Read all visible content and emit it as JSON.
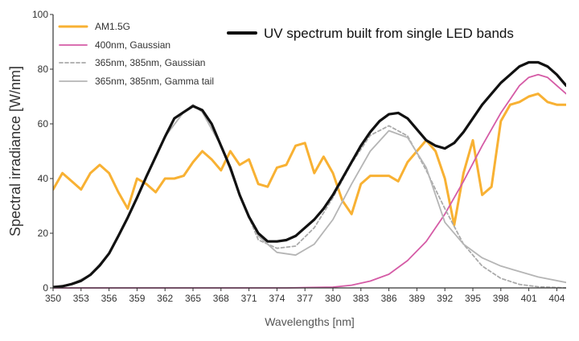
{
  "chart_data": {
    "type": "line",
    "title": "UV spectrum built from single LED bands",
    "xlabel": "Wavelengths [nm]",
    "ylabel": "Spectral irradiance [W/nm]",
    "xlim": [
      350,
      405
    ],
    "ylim": [
      0,
      100
    ],
    "x_ticks": [
      350,
      353,
      356,
      359,
      362,
      365,
      368,
      371,
      374,
      377,
      380,
      383,
      386,
      389,
      392,
      395,
      398,
      401,
      404
    ],
    "x_tick_labels": [
      "350",
      "353",
      "356",
      "359",
      "362",
      "365",
      "368",
      "371",
      "374",
      "377",
      "380",
      "383",
      "386",
      "389",
      "392",
      "395",
      "398",
      "401",
      "404"
    ],
    "y_ticks": [
      0,
      20,
      40,
      60,
      80,
      100
    ],
    "y_tick_labels": [
      "0",
      "20",
      "40",
      "60",
      "80",
      "100"
    ],
    "grid": false,
    "legend_placement": "top-left",
    "series": [
      {
        "name": "AM1.5G",
        "color": "#f8b133",
        "style": "solid",
        "x": [
          350,
          351,
          352,
          353,
          354,
          355,
          356,
          357,
          358,
          359,
          360,
          361,
          362,
          363,
          364,
          365,
          366,
          367,
          368,
          369,
          370,
          371,
          372,
          373,
          374,
          375,
          376,
          377,
          378,
          379,
          380,
          381,
          382,
          383,
          384,
          385,
          386,
          387,
          388,
          389,
          390,
          391,
          392,
          393,
          394,
          395,
          396,
          397,
          398,
          399,
          400,
          401,
          402,
          403,
          404,
          405
        ],
        "y": [
          36,
          42,
          39,
          36,
          42,
          45,
          42,
          35,
          29,
          40,
          38,
          35,
          40,
          40,
          41,
          46,
          50,
          47,
          43,
          50,
          45,
          47,
          38,
          37,
          44,
          45,
          52,
          53,
          42,
          48,
          42,
          32,
          27,
          38,
          41,
          41,
          41,
          39,
          46,
          50,
          54,
          50,
          40,
          23,
          42,
          54,
          34,
          37,
          61,
          67,
          68,
          70,
          71,
          68,
          67,
          67
        ]
      },
      {
        "name": "400nm, Gaussian",
        "color": "#d55ba6",
        "style": "solid",
        "x": [
          350,
          355,
          360,
          365,
          370,
          375,
          380,
          382,
          384,
          386,
          388,
          390,
          392,
          394,
          396,
          398,
          400,
          401,
          402,
          403,
          404,
          405
        ],
        "y": [
          0,
          0,
          0,
          0,
          0,
          0,
          0.3,
          1,
          2.5,
          5,
          10,
          17,
          27,
          39,
          52,
          64,
          74,
          77,
          78,
          77,
          74,
          71
        ]
      },
      {
        "name": "365nm, 385nm, Gaussian",
        "color": "#aaaaaa",
        "style": "dashed",
        "x": [
          350,
          352,
          354,
          356,
          358,
          360,
          362,
          364,
          365,
          366,
          368,
          370,
          372,
          374,
          376,
          378,
          380,
          382,
          384,
          386,
          388,
          390,
          392,
          394,
          396,
          398,
          400,
          402,
          405
        ],
        "y": [
          0.3,
          1.4,
          4.8,
          12.6,
          25.7,
          40.7,
          55.3,
          64.3,
          67,
          64.3,
          52,
          34,
          17.6,
          14.5,
          15.3,
          22,
          33,
          45.6,
          55.8,
          59.3,
          55.6,
          43,
          29,
          16,
          8,
          3.5,
          1.3,
          0.4,
          0
        ]
      },
      {
        "name": "365nm, 385nm, Gamma tail",
        "color": "#b5b5b5",
        "style": "solid",
        "x": [
          350,
          352,
          354,
          356,
          358,
          360,
          362,
          364,
          365,
          366,
          368,
          370,
          372,
          374,
          376,
          378,
          380,
          382,
          384,
          386,
          388,
          390,
          392,
          394,
          396,
          398,
          400,
          402,
          405
        ],
        "y": [
          0.3,
          1.4,
          4.8,
          12.6,
          25.7,
          40.7,
          55.3,
          64.3,
          67,
          64.3,
          52,
          34,
          19,
          13,
          12,
          16,
          25,
          38,
          50,
          57.5,
          55,
          44,
          24,
          16,
          11,
          8,
          6,
          4,
          2
        ]
      },
      {
        "name": "UV spectrum built from single LED bands",
        "color": "#111111",
        "style": "solid",
        "x": [
          350,
          351,
          352,
          353,
          354,
          355,
          356,
          357,
          358,
          359,
          360,
          361,
          362,
          363,
          364,
          365,
          366,
          367,
          368,
          369,
          370,
          371,
          372,
          373,
          374,
          375,
          376,
          377,
          378,
          379,
          380,
          381,
          382,
          383,
          384,
          385,
          386,
          387,
          388,
          389,
          390,
          391,
          392,
          393,
          394,
          395,
          396,
          397,
          398,
          399,
          400,
          401,
          402,
          403,
          404,
          405
        ],
        "y": [
          0.3,
          0.6,
          1.4,
          2.6,
          4.8,
          8.2,
          12.6,
          19,
          25.7,
          33,
          40.7,
          48,
          55.3,
          62,
          64.3,
          66.5,
          65,
          60,
          52,
          44,
          34,
          26,
          20,
          17,
          17,
          17.5,
          19,
          22,
          25,
          29,
          34,
          40,
          46,
          52,
          57,
          61,
          63.5,
          64,
          62,
          58,
          54,
          52,
          51,
          53,
          57,
          62,
          67,
          71,
          75,
          78,
          81,
          82.5,
          82.5,
          81,
          78,
          74
        ]
      }
    ]
  }
}
